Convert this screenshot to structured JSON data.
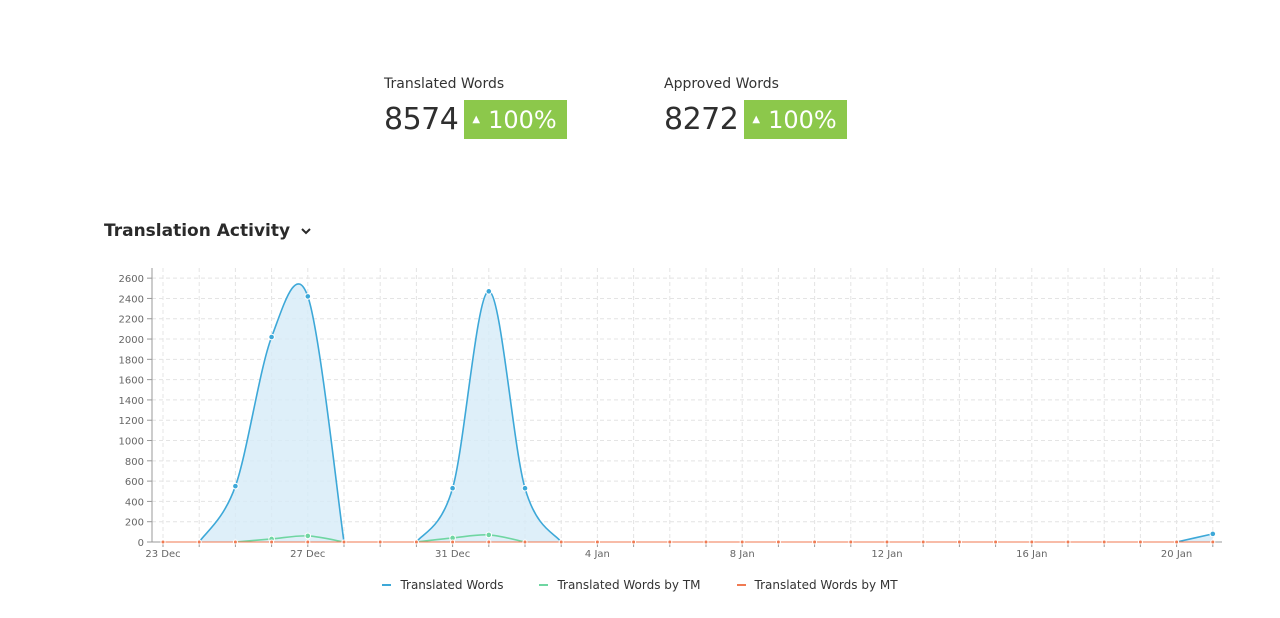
{
  "stats": {
    "translated": {
      "label": "Translated Words",
      "value": "8574",
      "change": "100%"
    },
    "approved": {
      "label": "Approved Words",
      "value": "8272",
      "change": "100%"
    }
  },
  "section": {
    "title": "Translation Activity",
    "dropdown_icon": "chevron-down-icon"
  },
  "colors": {
    "badge": "#8cc84b",
    "tw": "#3da8d8",
    "tw_fill": "#d6ebf8",
    "tm": "#6fd6a2",
    "mt": "#f07a52"
  },
  "legend": [
    "Translated Words",
    "Translated Words by TM",
    "Translated Words by MT"
  ],
  "chart_data": {
    "type": "area",
    "x_tick_labels": [
      "23 Dec",
      "27 Dec",
      "31 Dec",
      "4 Jan",
      "8 Jan",
      "12 Jan",
      "16 Jan",
      "20 Jan"
    ],
    "x": [
      "23 Dec",
      "24 Dec",
      "25 Dec",
      "26 Dec",
      "27 Dec",
      "28 Dec",
      "29 Dec",
      "30 Dec",
      "31 Dec",
      "1 Jan",
      "2 Jan",
      "3 Jan",
      "4 Jan",
      "5 Jan",
      "6 Jan",
      "7 Jan",
      "8 Jan",
      "9 Jan",
      "10 Jan",
      "11 Jan",
      "12 Jan",
      "13 Jan",
      "14 Jan",
      "15 Jan",
      "16 Jan",
      "17 Jan",
      "18 Jan",
      "19 Jan",
      "20 Jan",
      "21 Jan"
    ],
    "ylim": [
      0,
      2700
    ],
    "y_ticks": [
      0,
      200,
      400,
      600,
      800,
      1000,
      1200,
      1400,
      1600,
      1800,
      2000,
      2200,
      2400,
      2600
    ],
    "grid": true,
    "legend_position": "bottom",
    "series": [
      {
        "name": "Translated Words",
        "values": [
          0,
          0,
          550,
          2020,
          2420,
          0,
          0,
          0,
          530,
          2470,
          530,
          0,
          0,
          0,
          0,
          0,
          0,
          0,
          0,
          0,
          0,
          0,
          0,
          0,
          0,
          0,
          0,
          0,
          0,
          80
        ]
      },
      {
        "name": "Translated Words by TM",
        "values": [
          0,
          0,
          0,
          30,
          60,
          0,
          0,
          0,
          40,
          70,
          0,
          0,
          0,
          0,
          0,
          0,
          0,
          0,
          0,
          0,
          0,
          0,
          0,
          0,
          0,
          0,
          0,
          0,
          0,
          0
        ]
      },
      {
        "name": "Translated Words by MT",
        "values": [
          0,
          0,
          0,
          0,
          0,
          0,
          0,
          0,
          0,
          0,
          0,
          0,
          0,
          0,
          0,
          0,
          0,
          0,
          0,
          0,
          0,
          0,
          0,
          0,
          0,
          0,
          0,
          0,
          0,
          0
        ]
      }
    ]
  }
}
